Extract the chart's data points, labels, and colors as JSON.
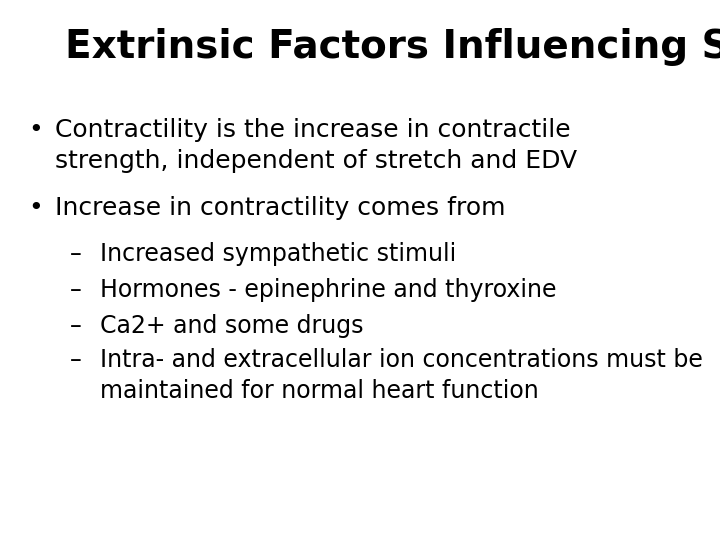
{
  "title": "Extrinsic Factors Influencing SV",
  "title_fontsize": 28,
  "title_fontweight": "bold",
  "background_color": "#ffffff",
  "text_color": "#000000",
  "bullet1_line1": "Contractility is the increase in contractile",
  "bullet1_line2": "strength, independent of stretch and EDV",
  "bullet2": "Increase in contractility comes from",
  "sub1": "Increased sympathetic stimuli",
  "sub2": "Hormones - epinephrine and thyroxine",
  "sub3": "Ca2+ and some drugs",
  "sub4_line1": "Intra- and extracellular ion concentrations must be",
  "sub4_line2": "maintained for normal heart function",
  "body_fontsize": 18,
  "sub_fontsize": 17,
  "font_family": "DejaVu Sans"
}
